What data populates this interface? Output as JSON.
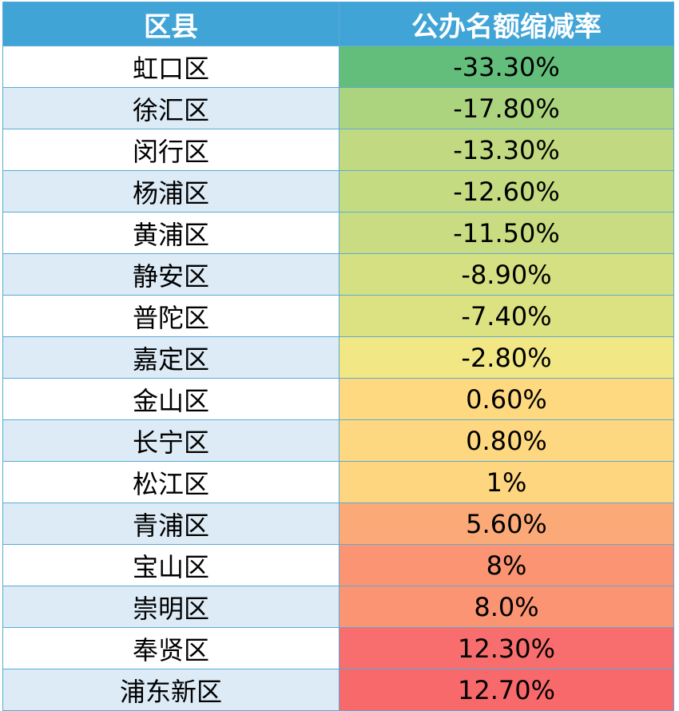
{
  "table": {
    "headers": [
      "区县",
      "公办名额缩减率"
    ],
    "rows": [
      {
        "district": "虹口区",
        "rate": "-33.30%",
        "color": "#63be7b"
      },
      {
        "district": "徐汇区",
        "rate": "-17.80%",
        "color": "#acd47f"
      },
      {
        "district": "闵行区",
        "rate": "-13.30%",
        "color": "#c1da81"
      },
      {
        "district": "杨浦区",
        "rate": "-12.60%",
        "color": "#c4db81"
      },
      {
        "district": "黄浦区",
        "rate": "-11.50%",
        "color": "#c9dc81"
      },
      {
        "district": "静安区",
        "rate": "-8.90%",
        "color": "#d5e082"
      },
      {
        "district": "普陀区",
        "rate": "-7.40%",
        "color": "#dce282"
      },
      {
        "district": "嘉定区",
        "rate": "-2.80%",
        "color": "#f1e784"
      },
      {
        "district": "金山区",
        "rate": "0.60%",
        "color": "#fed980"
      },
      {
        "district": "长宁区",
        "rate": "0.80%",
        "color": "#fed880"
      },
      {
        "district": "松江区",
        "rate": "1%",
        "color": "#fed680"
      },
      {
        "district": "青浦区",
        "rate": "5.60%",
        "color": "#fbaa77"
      },
      {
        "district": "宝山区",
        "rate": "8%",
        "color": "#fa9473"
      },
      {
        "district": "崇明区",
        "rate": "8.0%",
        "color": "#fa9473"
      },
      {
        "district": "奉贤区",
        "rate": "12.30%",
        "color": "#f86d6d"
      },
      {
        "district": "浦东新区",
        "rate": "12.70%",
        "color": "#f8696b"
      }
    ]
  }
}
